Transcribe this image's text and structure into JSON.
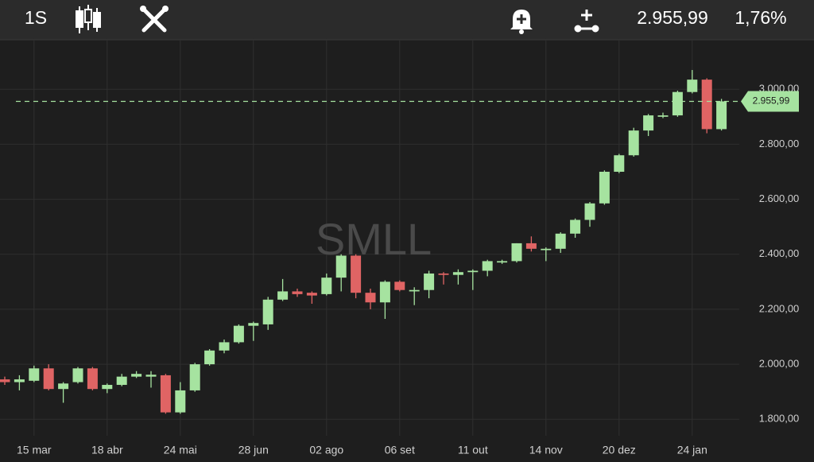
{
  "toolbar": {
    "period": "1S",
    "last": "2.955,99",
    "change": "1,76%"
  },
  "chart_data": {
    "type": "candlestick",
    "watermark": "SMLL",
    "categories": [
      null,
      null,
      "15 mar",
      null,
      null,
      null,
      null,
      "18 abr",
      null,
      null,
      null,
      null,
      "24 mai",
      null,
      null,
      null,
      null,
      "28 jun",
      null,
      null,
      null,
      null,
      "02 ago",
      null,
      null,
      null,
      null,
      "06 set",
      null,
      null,
      null,
      null,
      "11 out",
      null,
      null,
      null,
      null,
      "14 nov",
      null,
      null,
      null,
      null,
      "20 dez",
      null,
      null,
      null,
      null,
      "24 jan",
      null,
      null
    ],
    "open": [
      1945,
      1935,
      1940,
      1985,
      1910,
      1935,
      1985,
      1910,
      1925,
      1955,
      1955,
      1960,
      1825,
      1905,
      2000,
      2050,
      2080,
      2140,
      2145,
      2235,
      2265,
      2260,
      2255,
      2315,
      2395,
      2260,
      2225,
      2300,
      2265,
      2270,
      2330,
      2325,
      2335,
      2340,
      2370,
      2375,
      2440,
      2415,
      2420,
      2475,
      2525,
      2585,
      2700,
      2760,
      2850,
      2900,
      2905,
      2990,
      3035,
      2855
    ],
    "high": [
      1955,
      1960,
      1995,
      2000,
      1935,
      1990,
      1990,
      1930,
      1965,
      1975,
      1975,
      1965,
      1935,
      2005,
      2055,
      2090,
      2145,
      2155,
      2245,
      2310,
      2275,
      2265,
      2330,
      2400,
      2400,
      2275,
      2305,
      2305,
      2280,
      2340,
      2335,
      2345,
      2345,
      2380,
      2380,
      2440,
      2465,
      2425,
      2480,
      2530,
      2590,
      2705,
      2765,
      2860,
      2910,
      2915,
      2995,
      3070,
      3040,
      2965
    ],
    "low": [
      1925,
      1905,
      1935,
      1905,
      1860,
      1930,
      1905,
      1895,
      1920,
      1950,
      1915,
      1820,
      1820,
      1900,
      1995,
      2040,
      2075,
      2085,
      2125,
      2230,
      2245,
      2220,
      2250,
      2265,
      2240,
      2200,
      2165,
      2265,
      2215,
      2240,
      2290,
      2290,
      2270,
      2320,
      2365,
      2370,
      2410,
      2375,
      2405,
      2460,
      2500,
      2580,
      2695,
      2755,
      2830,
      2895,
      2900,
      2985,
      2840,
      2850
    ],
    "close": [
      1935,
      1945,
      1985,
      1910,
      1930,
      1985,
      1910,
      1925,
      1955,
      1965,
      1962,
      1825,
      1905,
      2000,
      2050,
      2080,
      2140,
      2150,
      2235,
      2265,
      2255,
      2250,
      2315,
      2395,
      2260,
      2225,
      2300,
      2270,
      2270,
      2330,
      2325,
      2335,
      2340,
      2375,
      2375,
      2440,
      2420,
      2420,
      2475,
      2525,
      2585,
      2700,
      2760,
      2850,
      2905,
      2905,
      2990,
      3035,
      2855,
      2955.99
    ],
    "up_color": "#a6e3a0",
    "down_color": "#e06464",
    "last_price": {
      "value": 2955.99,
      "label": "2.955,99"
    },
    "ylim": [
      1740,
      3180
    ],
    "yticks": [
      {
        "value": 1800,
        "label": "1.800,00"
      },
      {
        "value": 2000,
        "label": "2.000,00"
      },
      {
        "value": 2200,
        "label": "2.200,00"
      },
      {
        "value": 2400,
        "label": "2.400,00"
      },
      {
        "value": 2600,
        "label": "2.600,00"
      },
      {
        "value": 2800,
        "label": "2.800,00"
      },
      {
        "value": 3000,
        "label": "3.000,00"
      }
    ],
    "grid": true
  }
}
